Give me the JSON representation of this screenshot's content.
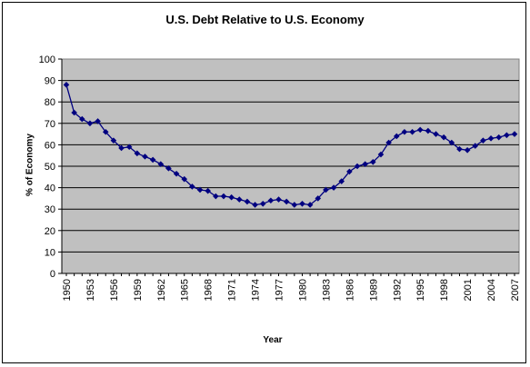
{
  "chart_data": {
    "type": "line",
    "title": "U.S. Debt Relative to U.S. Economy",
    "xlabel": "Year",
    "ylabel": "% of Economy",
    "ylim": [
      0,
      100
    ],
    "yticks": [
      0,
      10,
      20,
      30,
      40,
      50,
      60,
      70,
      80,
      90,
      100
    ],
    "xtick_labels": [
      "1950",
      "1953",
      "1956",
      "1959",
      "1962",
      "1965",
      "1968",
      "1971",
      "1974",
      "1977",
      "1980",
      "1983",
      "1986",
      "1989",
      "1992",
      "1995",
      "1998",
      "2001",
      "2004",
      "2007"
    ],
    "grid": true,
    "plot_background": "#c0c0c0",
    "series_color": "#000080",
    "marker": "diamond",
    "x": [
      1950,
      1951,
      1952,
      1953,
      1954,
      1955,
      1956,
      1957,
      1958,
      1959,
      1960,
      1961,
      1962,
      1963,
      1964,
      1965,
      1966,
      1967,
      1968,
      1969,
      1970,
      1971,
      1972,
      1973,
      1974,
      1975,
      1976,
      1977,
      1978,
      1979,
      1980,
      1981,
      1982,
      1983,
      1984,
      1985,
      1986,
      1987,
      1988,
      1989,
      1990,
      1991,
      1992,
      1993,
      1994,
      1995,
      1996,
      1997,
      1998,
      1999,
      2000,
      2001,
      2002,
      2003,
      2004,
      2005,
      2006,
      2007
    ],
    "y": [
      88,
      75,
      72,
      70,
      71,
      66,
      62,
      58.5,
      59,
      56,
      54.5,
      53,
      51,
      49,
      46.5,
      44,
      40.5,
      39,
      38.5,
      36,
      36,
      35.5,
      34.5,
      33.5,
      32,
      32.5,
      34,
      34.5,
      33.5,
      32,
      32.5,
      32,
      35,
      39,
      40,
      43,
      47.5,
      50,
      51,
      52,
      55.5,
      61,
      64,
      66,
      66,
      67,
      66.5,
      65,
      63.5,
      61,
      58,
      57.5,
      59.5,
      62,
      63,
      63.5,
      64.5,
      65
    ]
  }
}
